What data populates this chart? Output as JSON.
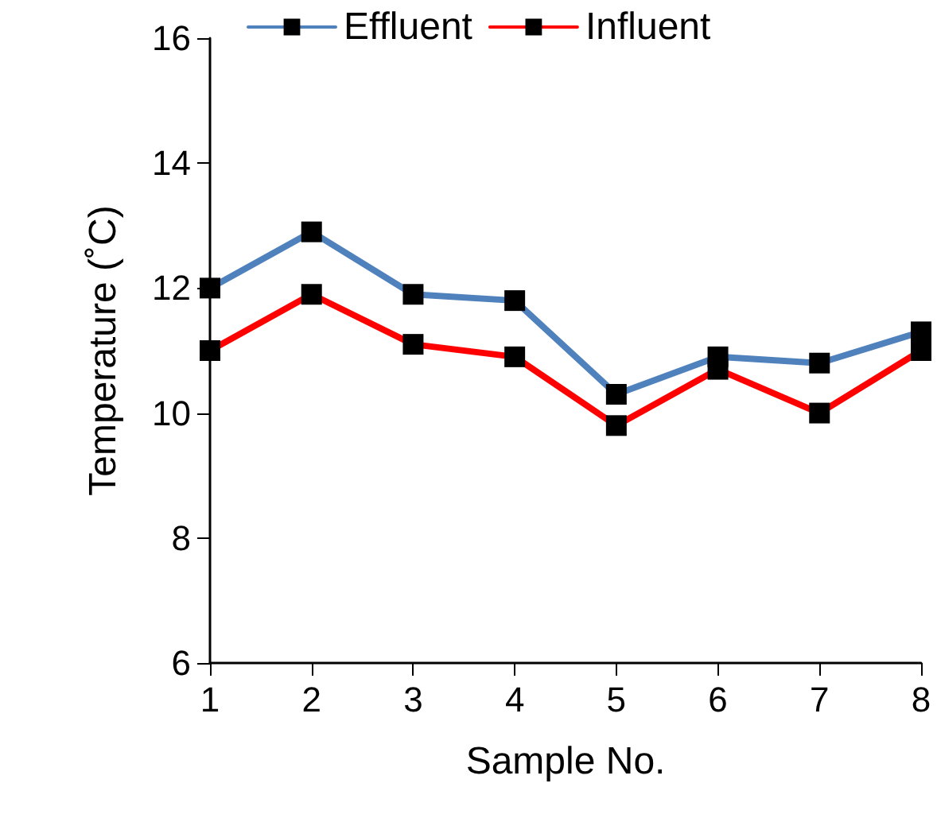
{
  "chart_data": {
    "type": "line",
    "xlabel": "Sample No.",
    "ylabel": "Temperature (˚C)",
    "x": [
      1,
      2,
      3,
      4,
      5,
      6,
      7,
      8
    ],
    "series": [
      {
        "name": "Effluent",
        "color": "#4f81bd",
        "values": [
          12.0,
          12.9,
          11.9,
          11.8,
          10.3,
          10.9,
          10.8,
          11.3
        ]
      },
      {
        "name": "Influent",
        "color": "#ff0000",
        "values": [
          11.0,
          11.9,
          11.1,
          10.9,
          9.8,
          10.7,
          10.0,
          11.0
        ]
      }
    ],
    "xlim": [
      1,
      8
    ],
    "xticks": [
      1,
      2,
      3,
      4,
      5,
      6,
      7,
      8
    ],
    "ylim": [
      6,
      16
    ],
    "yticks": [
      6,
      8,
      10,
      12,
      14,
      16
    ],
    "grid": false,
    "legend": "top",
    "marker": "square",
    "line_style": "solid"
  }
}
